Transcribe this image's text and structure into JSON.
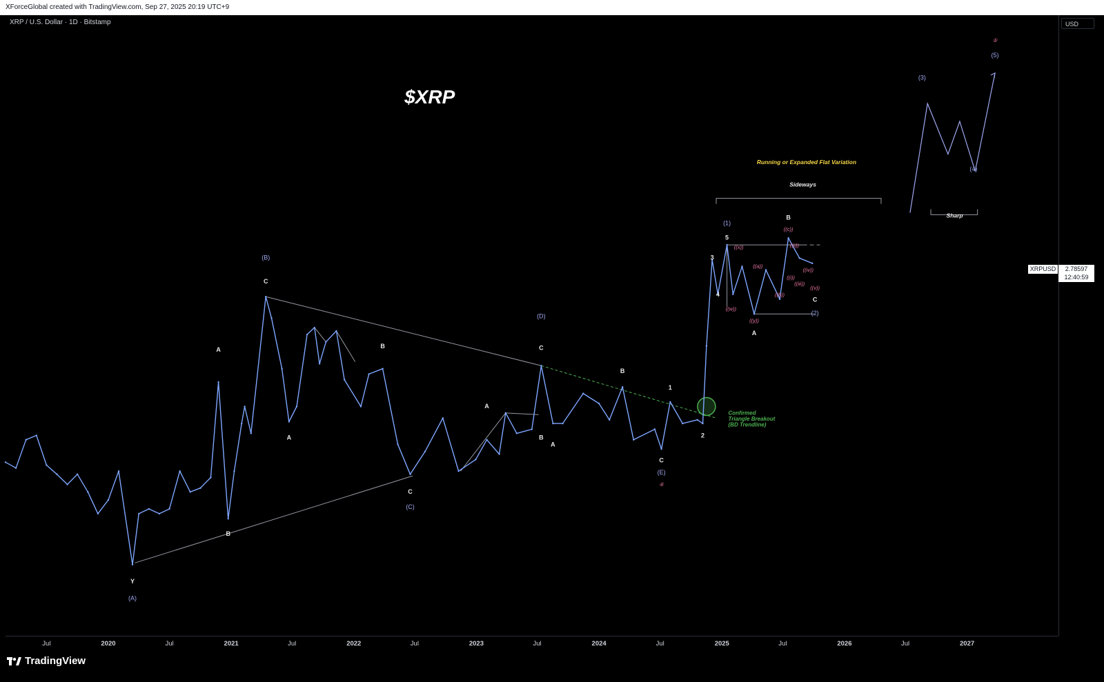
{
  "header": {
    "attribution": "XForceGlobal created with TradingView.com, Sep 27, 2025 20:19 UTC+9"
  },
  "symbol": {
    "title": "XRP / U.S. Dollar · 1D · Bitstamp",
    "ticker": "XRPUSD",
    "currency": "USD"
  },
  "last_price": {
    "value": "2.78597",
    "countdown": "12:40:59"
  },
  "brand": {
    "name": "TradingView"
  },
  "colors": {
    "background": "#000000",
    "candle": "#7ea6ff",
    "trendline": "#9598a1",
    "breakout": "#4caf50",
    "wave_blue": "#9fa8f0",
    "wave_pink": "#f07aa8",
    "annotation_yellow": "#f5d547"
  },
  "chart_data": {
    "type": "line",
    "title": "$XRP",
    "scale": "log",
    "ylim": [
      0.052,
      40
    ],
    "xlim": [
      "2019-03-01",
      "2027-09-30"
    ],
    "y_ticks": [
      "34.00000",
      "28.00000",
      "23.00000",
      "19.00000",
      "16.00000",
      "13.00000",
      "10.50000",
      "8.50000",
      "7.00000",
      "5.80000",
      "4.80000",
      "4.00000",
      "3.20000",
      "2.10000",
      "1.70000",
      "1.40000",
      "1.15000",
      "0.95000",
      "0.80000",
      "0.66000",
      "0.54000",
      "0.44000",
      "0.37000",
      "0.31000",
      "0.26000",
      "0.21000",
      "0.17500",
      "0.14500",
      "0.12000",
      "0.10000",
      "0.08400",
      "0.07000",
      "0.05900"
    ],
    "x_ticks": [
      {
        "label": "Jul",
        "date": "2019-07-01",
        "bold": false
      },
      {
        "label": "2020",
        "date": "2020-01-01",
        "bold": true
      },
      {
        "label": "Jul",
        "date": "2020-07-01",
        "bold": false
      },
      {
        "label": "2021",
        "date": "2021-01-01",
        "bold": true
      },
      {
        "label": "Jul",
        "date": "2021-07-01",
        "bold": false
      },
      {
        "label": "2022",
        "date": "2022-01-01",
        "bold": true
      },
      {
        "label": "Jul",
        "date": "2022-07-01",
        "bold": false
      },
      {
        "label": "2023",
        "date": "2023-01-01",
        "bold": true
      },
      {
        "label": "Jul",
        "date": "2023-07-01",
        "bold": false
      },
      {
        "label": "2024",
        "date": "2024-01-01",
        "bold": true
      },
      {
        "label": "Jul",
        "date": "2024-07-01",
        "bold": false
      },
      {
        "label": "2025",
        "date": "2025-01-01",
        "bold": true
      },
      {
        "label": "Jul",
        "date": "2025-07-01",
        "bold": false
      },
      {
        "label": "2026",
        "date": "2026-01-01",
        "bold": true
      },
      {
        "label": "Jul",
        "date": "2026-07-01",
        "bold": false
      },
      {
        "label": "2027",
        "date": "2027-01-01",
        "bold": true
      }
    ],
    "series": [
      {
        "values": [
          [
            "2019-03-01",
            0.33
          ],
          [
            "2019-04-01",
            0.31
          ],
          [
            "2019-05-01",
            0.42
          ],
          [
            "2019-06-01",
            0.44
          ],
          [
            "2019-07-01",
            0.32
          ],
          [
            "2019-08-01",
            0.29
          ],
          [
            "2019-09-01",
            0.26
          ],
          [
            "2019-10-01",
            0.29
          ],
          [
            "2019-11-01",
            0.24
          ],
          [
            "2019-12-01",
            0.19
          ],
          [
            "2020-01-01",
            0.22
          ],
          [
            "2020-02-01",
            0.3
          ],
          [
            "2020-03-13",
            0.11
          ],
          [
            "2020-04-01",
            0.19
          ],
          [
            "2020-05-01",
            0.2
          ],
          [
            "2020-06-01",
            0.19
          ],
          [
            "2020-07-01",
            0.2
          ],
          [
            "2020-08-01",
            0.3
          ],
          [
            "2020-09-01",
            0.24
          ],
          [
            "2020-10-01",
            0.25
          ],
          [
            "2020-11-01",
            0.28
          ],
          [
            "2020-11-24",
            0.78
          ],
          [
            "2020-12-23",
            0.18
          ],
          [
            "2021-01-10",
            0.3
          ],
          [
            "2021-02-01",
            0.5
          ],
          [
            "2021-02-10",
            0.6
          ],
          [
            "2021-03-01",
            0.45
          ],
          [
            "2021-04-14",
            1.95
          ],
          [
            "2021-05-01",
            1.55
          ],
          [
            "2021-06-01",
            0.9
          ],
          [
            "2021-06-22",
            0.51
          ],
          [
            "2021-07-15",
            0.6
          ],
          [
            "2021-08-15",
            1.3
          ],
          [
            "2021-09-06",
            1.4
          ],
          [
            "2021-09-21",
            0.95
          ],
          [
            "2021-10-10",
            1.2
          ],
          [
            "2021-11-10",
            1.35
          ],
          [
            "2021-12-04",
            0.8
          ],
          [
            "2022-01-22",
            0.6
          ],
          [
            "2022-02-15",
            0.85
          ],
          [
            "2022-03-28",
            0.9
          ],
          [
            "2022-05-12",
            0.4
          ],
          [
            "2022-06-18",
            0.29
          ],
          [
            "2022-08-01",
            0.37
          ],
          [
            "2022-09-23",
            0.53
          ],
          [
            "2022-11-09",
            0.3
          ],
          [
            "2022-12-30",
            0.34
          ],
          [
            "2023-02-01",
            0.42
          ],
          [
            "2023-03-10",
            0.36
          ],
          [
            "2023-03-29",
            0.56
          ],
          [
            "2023-05-01",
            0.45
          ],
          [
            "2023-06-15",
            0.47
          ],
          [
            "2023-07-13",
            0.93
          ],
          [
            "2023-08-17",
            0.5
          ],
          [
            "2023-09-15",
            0.5
          ],
          [
            "2023-11-15",
            0.69
          ],
          [
            "2024-01-01",
            0.62
          ],
          [
            "2024-02-01",
            0.52
          ],
          [
            "2024-03-11",
            0.74
          ],
          [
            "2024-04-13",
            0.42
          ],
          [
            "2024-06-15",
            0.47
          ],
          [
            "2024-07-05",
            0.38
          ],
          [
            "2024-07-31",
            0.63
          ],
          [
            "2024-09-06",
            0.5
          ],
          [
            "2024-10-20",
            0.52
          ],
          [
            "2024-11-05",
            0.5
          ],
          [
            "2024-11-16",
            1.15
          ],
          [
            "2024-12-03",
            2.9
          ],
          [
            "2024-12-20",
            2.0
          ],
          [
            "2025-01-16",
            3.4
          ],
          [
            "2025-02-03",
            2.0
          ],
          [
            "2025-03-02",
            2.7
          ],
          [
            "2025-04-07",
            1.62
          ],
          [
            "2025-05-12",
            2.6
          ],
          [
            "2025-06-22",
            1.9
          ],
          [
            "2025-07-18",
            3.66
          ],
          [
            "2025-08-20",
            2.95
          ],
          [
            "2025-09-27",
            2.79
          ]
        ]
      }
    ]
  },
  "annotations": {
    "headline": "$XRP",
    "flat_variation": "Running or Expanded Flat Variation",
    "sideways": "Sideways",
    "sharp": "Sharp",
    "breakout": [
      "Confirmed",
      "Triangle Breakout",
      "(BD Trendline)"
    ],
    "wave_labels": [
      {
        "t": "(A)",
        "d": "2020-03-13",
        "p": 0.075,
        "c": "blue"
      },
      {
        "t": "Y",
        "d": "2020-03-13",
        "p": 0.09,
        "c": "white"
      },
      {
        "t": "A",
        "d": "2020-11-24",
        "p": 1.08,
        "c": "white"
      },
      {
        "t": "B",
        "d": "2020-12-23",
        "p": 0.15,
        "c": "white"
      },
      {
        "t": "(B)",
        "d": "2021-04-14",
        "p": 2.9,
        "c": "blue"
      },
      {
        "t": "C",
        "d": "2021-04-14",
        "p": 2.25,
        "c": "white"
      },
      {
        "t": "A",
        "d": "2021-06-22",
        "p": 0.42,
        "c": "white"
      },
      {
        "t": "B",
        "d": "2022-03-28",
        "p": 1.12,
        "c": "white"
      },
      {
        "t": "C",
        "d": "2022-06-18",
        "p": 0.235,
        "c": "white"
      },
      {
        "t": "(C)",
        "d": "2022-06-18",
        "p": 0.2,
        "c": "blue"
      },
      {
        "t": "A",
        "d": "2023-02-01",
        "p": 0.59,
        "c": "white"
      },
      {
        "t": "(D)",
        "d": "2023-07-13",
        "p": 1.55,
        "c": "blue"
      },
      {
        "t": "C",
        "d": "2023-07-13",
        "p": 1.1,
        "c": "white"
      },
      {
        "t": "B",
        "d": "2023-07-13",
        "p": 0.42,
        "c": "white"
      },
      {
        "t": "A",
        "d": "2023-08-17",
        "p": 0.39,
        "c": "white"
      },
      {
        "t": "B",
        "d": "2024-03-11",
        "p": 0.86,
        "c": "white"
      },
      {
        "t": "C",
        "d": "2024-07-05",
        "p": 0.33,
        "c": "white"
      },
      {
        "t": "(E)",
        "d": "2024-07-05",
        "p": 0.29,
        "c": "blue"
      },
      {
        "t": "④",
        "d": "2024-07-05",
        "p": 0.255,
        "c": "pink"
      },
      {
        "t": "1",
        "d": "2024-07-31",
        "p": 0.72,
        "c": "white"
      },
      {
        "t": "2",
        "d": "2024-11-05",
        "p": 0.43,
        "c": "white"
      },
      {
        "t": "3",
        "d": "2024-12-03",
        "p": 2.9,
        "c": "white"
      },
      {
        "t": "4",
        "d": "2024-12-20",
        "p": 1.95,
        "c": "white"
      },
      {
        "t": "(1)",
        "d": "2025-01-16",
        "p": 4.2,
        "c": "blue"
      },
      {
        "t": "5",
        "d": "2025-01-16",
        "p": 3.6,
        "c": "white"
      },
      {
        "t": "((w))",
        "d": "2025-01-28",
        "p": 1.68,
        "c": "pink"
      },
      {
        "t": "((x))",
        "d": "2025-02-20",
        "p": 3.25,
        "c": "pink"
      },
      {
        "t": "((y))",
        "d": "2025-04-07",
        "p": 1.48,
        "c": "pink"
      },
      {
        "t": "A",
        "d": "2025-04-07",
        "p": 1.29,
        "c": "white"
      },
      {
        "t": "((a))",
        "d": "2025-04-18",
        "p": 2.66,
        "c": "pink"
      },
      {
        "t": "((b))",
        "d": "2025-06-22",
        "p": 1.95,
        "c": "pink"
      },
      {
        "t": "B",
        "d": "2025-07-18",
        "p": 4.45,
        "c": "white"
      },
      {
        "t": "((c))",
        "d": "2025-07-18",
        "p": 3.95,
        "c": "pink"
      },
      {
        "t": "((i))",
        "d": "2025-07-25",
        "p": 2.35,
        "c": "pink"
      },
      {
        "t": "((ii))",
        "d": "2025-08-05",
        "p": 3.32,
        "c": "pink"
      },
      {
        "t": "((iii))",
        "d": "2025-08-20",
        "p": 2.2,
        "c": "pink"
      },
      {
        "t": "((iv))",
        "d": "2025-09-15",
        "p": 2.55,
        "c": "pink"
      },
      {
        "t": "((v))",
        "d": "2025-10-05",
        "p": 2.1,
        "c": "pink"
      },
      {
        "t": "C",
        "d": "2025-10-05",
        "p": 1.85,
        "c": "white"
      },
      {
        "t": "(2)",
        "d": "2025-10-05",
        "p": 1.6,
        "c": "blue"
      },
      {
        "t": "(3)",
        "d": "2026-08-20",
        "p": 20,
        "c": "blue"
      },
      {
        "t": "(4)",
        "d": "2027-01-20",
        "p": 7.5,
        "c": "blue"
      },
      {
        "t": "⑤",
        "d": "2027-03-25",
        "p": 30,
        "c": "pink"
      },
      {
        "t": "(5)",
        "d": "2027-03-25",
        "p": 25.5,
        "c": "blue"
      }
    ],
    "projection_path": [
      [
        "2026-07-15",
        4.8
      ],
      [
        "2026-09-05",
        15.5
      ],
      [
        "2026-11-05",
        9.0
      ],
      [
        "2026-12-10",
        12.8
      ],
      [
        "2027-01-25",
        7.5
      ],
      [
        "2027-03-25",
        21.5
      ]
    ]
  }
}
